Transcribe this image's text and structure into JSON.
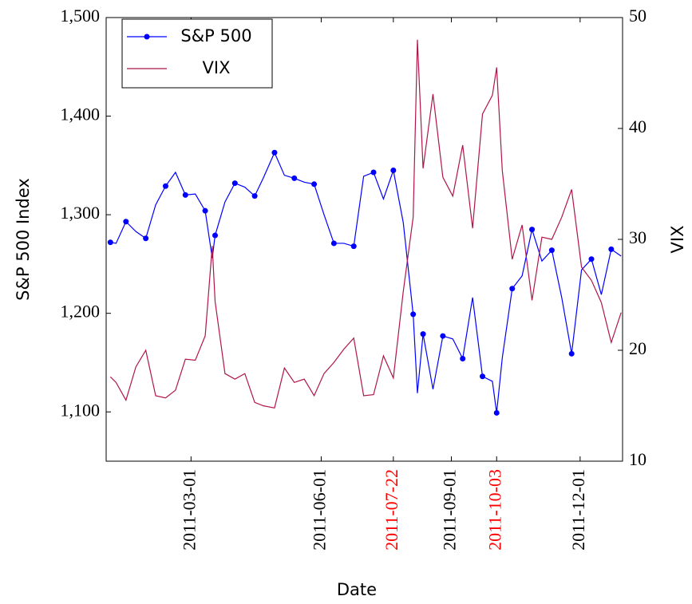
{
  "chart_data": {
    "type": "line",
    "xlabel": "Date",
    "ylabel": "S&P 500 Index",
    "y2label": "VIX",
    "x": [
      "2011-01-03",
      "2011-01-07",
      "2011-01-14",
      "2011-01-21",
      "2011-01-28",
      "2011-02-04",
      "2011-02-11",
      "2011-02-18",
      "2011-02-25",
      "2011-03-04",
      "2011-03-11",
      "2011-03-16",
      "2011-03-18",
      "2011-03-25",
      "2011-04-01",
      "2011-04-08",
      "2011-04-15",
      "2011-04-21",
      "2011-04-29",
      "2011-05-06",
      "2011-05-13",
      "2011-05-20",
      "2011-05-27",
      "2011-06-03",
      "2011-06-10",
      "2011-06-17",
      "2011-06-24",
      "2011-07-01",
      "2011-07-08",
      "2011-07-15",
      "2011-07-22",
      "2011-07-29",
      "2011-08-05",
      "2011-08-08",
      "2011-08-12",
      "2011-08-19",
      "2011-08-26",
      "2011-09-02",
      "2011-09-09",
      "2011-09-16",
      "2011-09-23",
      "2011-09-30",
      "2011-10-03",
      "2011-10-07",
      "2011-10-14",
      "2011-10-21",
      "2011-10-28",
      "2011-11-04",
      "2011-11-11",
      "2011-11-18",
      "2011-11-25",
      "2011-12-02",
      "2011-12-09",
      "2011-12-16",
      "2011-12-23",
      "2011-12-30"
    ],
    "series": [
      {
        "name": "S&P 500",
        "color": "#0000ff",
        "marker": true,
        "mark_every": 2,
        "values": [
          1272,
          1271,
          1293,
          1283,
          1276,
          1310,
          1329,
          1343,
          1320,
          1321,
          1304,
          1256,
          1279,
          1313,
          1332,
          1328,
          1319,
          1337,
          1363,
          1340,
          1337,
          1333,
          1331,
          1300,
          1271,
          1271,
          1268,
          1339,
          1343,
          1316,
          1345,
          1292,
          1199,
          1119,
          1179,
          1123,
          1177,
          1174,
          1154,
          1216,
          1136,
          1131,
          1099,
          1155,
          1225,
          1238,
          1285,
          1253,
          1264,
          1216,
          1159,
          1244,
          1255,
          1219,
          1265,
          1258
        ]
      },
      {
        "name": "VIX",
        "color": "#b0154a",
        "axis": "y2",
        "marker": false,
        "values": [
          17.6,
          17.1,
          15.5,
          18.5,
          20.0,
          15.9,
          15.7,
          16.4,
          19.2,
          19.1,
          21.3,
          29.4,
          24.4,
          17.9,
          17.4,
          17.9,
          15.3,
          15.0,
          14.8,
          18.4,
          17.1,
          17.4,
          15.9,
          17.9,
          18.9,
          20.1,
          21.1,
          15.9,
          16.0,
          19.5,
          17.5,
          25.3,
          32.0,
          48.0,
          36.4,
          43.1,
          35.6,
          33.9,
          38.5,
          31.0,
          41.3,
          43.0,
          45.5,
          36.2,
          28.2,
          31.3,
          24.5,
          30.2,
          30.0,
          32.0,
          34.5,
          27.5,
          26.3,
          24.3,
          20.7,
          23.4
        ]
      }
    ],
    "xlim": [
      "2010-12-31",
      "2011-12-31"
    ],
    "xticks": [
      "2011-03-01",
      "2011-06-01",
      "2011-07-22",
      "2011-09-01",
      "2011-10-03",
      "2011-12-01"
    ],
    "xtick_colors": [
      "#000000",
      "#000000",
      "#ff0000",
      "#000000",
      "#ff0000",
      "#000000"
    ],
    "ylim": [
      1050,
      1500
    ],
    "yticks": [
      {
        "value": 1100,
        "label": "1,100"
      },
      {
        "value": 1200,
        "label": "1,200"
      },
      {
        "value": 1300,
        "label": "1,300"
      },
      {
        "value": 1400,
        "label": "1,400"
      },
      {
        "value": 1500,
        "label": "1,500"
      }
    ],
    "y2lim": [
      10,
      50
    ],
    "y2ticks": [
      10,
      20,
      30,
      40,
      50
    ],
    "legend": "upper left"
  }
}
